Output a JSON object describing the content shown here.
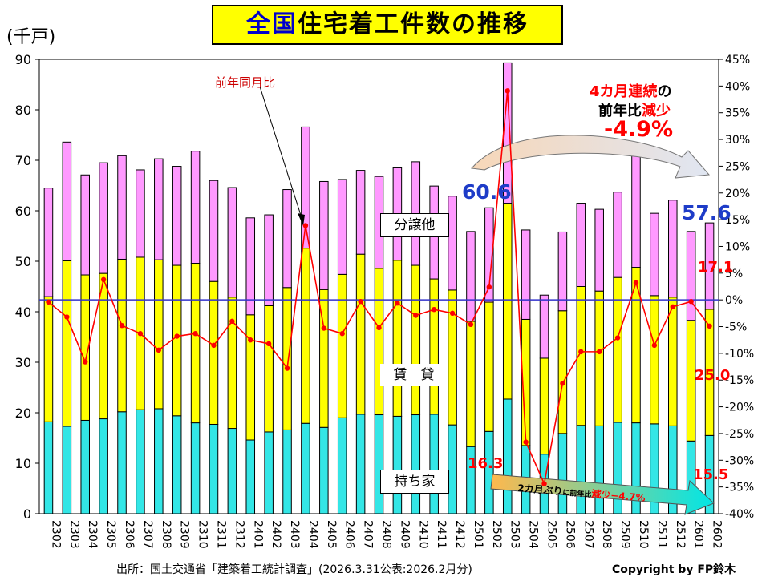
{
  "title": {
    "prefix": "全国",
    "rest": "住宅着工件数の推移"
  },
  "unit_label": "(千戸)",
  "chart_data": {
    "type": "bar",
    "stacked": true,
    "categories": [
      "2302",
      "2303",
      "2304",
      "2305",
      "2306",
      "2307",
      "2308",
      "2309",
      "2310",
      "2311",
      "2312",
      "2401",
      "2402",
      "2403",
      "2404",
      "2405",
      "2406",
      "2407",
      "2408",
      "2409",
      "2410",
      "2411",
      "2412",
      "2501",
      "2502",
      "2503",
      "2504",
      "2505",
      "2506",
      "2507",
      "2508",
      "2509",
      "2510",
      "2511",
      "2512",
      "2601",
      "2602"
    ],
    "series": [
      {
        "name": "持ち家",
        "color": "#33e6e6",
        "values": [
          18.2,
          17.3,
          18.5,
          18.8,
          20.2,
          20.6,
          20.8,
          19.4,
          18.0,
          17.7,
          16.9,
          14.6,
          16.2,
          16.6,
          17.9,
          17.1,
          19.0,
          19.7,
          19.6,
          19.3,
          19.6,
          19.7,
          17.6,
          13.3,
          16.3,
          22.7,
          13.5,
          11.8,
          15.9,
          17.5,
          17.4,
          18.1,
          18.0,
          17.8,
          17.4,
          14.4,
          15.5
        ]
      },
      {
        "name": "賃貸",
        "color": "#ffff00",
        "values": [
          24.8,
          32.8,
          28.8,
          28.8,
          30.2,
          30.2,
          29.5,
          29.8,
          31.6,
          28.3,
          26.0,
          24.8,
          25.0,
          28.2,
          34.7,
          27.3,
          28.4,
          31.7,
          29.0,
          30.9,
          29.6,
          26.8,
          26.7,
          24.8,
          25.6,
          38.8,
          25.0,
          19.0,
          24.3,
          27.5,
          26.7,
          28.7,
          30.8,
          25.4,
          25.5,
          23.9,
          25.0
        ]
      },
      {
        "name": "分譲他",
        "color": "#ff99ff",
        "values": [
          21.5,
          23.5,
          19.8,
          21.9,
          20.5,
          17.3,
          20.0,
          19.6,
          22.2,
          20.0,
          21.7,
          19.2,
          18.0,
          19.4,
          24.0,
          21.4,
          18.8,
          16.6,
          18.2,
          18.3,
          20.5,
          18.4,
          18.6,
          17.8,
          18.7,
          27.8,
          17.7,
          12.5,
          15.6,
          16.5,
          16.2,
          16.9,
          23.2,
          16.3,
          19.2,
          17.6,
          17.1
        ]
      },
      {
        "name": "前年同月比",
        "color": "#ff0000",
        "type": "line",
        "axis": "right",
        "values": [
          -0.4,
          -3.2,
          -11.6,
          3.8,
          -4.8,
          -6.3,
          -9.4,
          -6.8,
          -6.3,
          -8.5,
          -4.0,
          -7.5,
          -8.2,
          -12.8,
          13.9,
          -5.3,
          -6.3,
          -0.3,
          -5.2,
          -0.6,
          -2.9,
          -1.8,
          -2.5,
          -4.6,
          2.4,
          39.1,
          -26.6,
          -34.4,
          -15.6,
          -9.7,
          -9.7,
          -7.1,
          3.2,
          -8.5,
          -1.3,
          -0.3,
          -4.9
        ]
      }
    ],
    "ylim": [
      0,
      90
    ],
    "y_ticks": [
      0,
      10,
      20,
      30,
      40,
      50,
      60,
      70,
      80,
      90
    ],
    "y2lim": [
      -40,
      45
    ],
    "y2_ticks": [
      "-40%",
      "-35%",
      "-30%",
      "-25%",
      "-20%",
      "-15%",
      "-10%",
      "-5%",
      "0%",
      "5%",
      "10%",
      "15%",
      "20%",
      "25%",
      "30%",
      "35%",
      "40%",
      "45%"
    ],
    "annotations": {
      "yoy_label": "前年同月比",
      "v60": "60.6",
      "v57": "57.6",
      "v171": "17.1",
      "v250": "25.0",
      "v163": "16.3",
      "v155": "15.5"
    }
  },
  "series_labels": {
    "bunjo": "分譲他",
    "chintai": "賃　貸",
    "mochiie": "持ち家"
  },
  "headline": {
    "l1_a": "4カ月連続",
    "l1_b": "の",
    "l2_a": "前年比",
    "l2_b": "減少",
    "l3": "-4.9%"
  },
  "banner": {
    "a": "2カ月ぶり",
    "b": "に前年比",
    "c": "減少",
    "d": "−4.7%"
  },
  "footer": {
    "source": "出所：国土交通省「建築着工統計調査」(2026.3.31公表:2026.2月分)",
    "copyright": "Copyright by FP鈴木"
  }
}
